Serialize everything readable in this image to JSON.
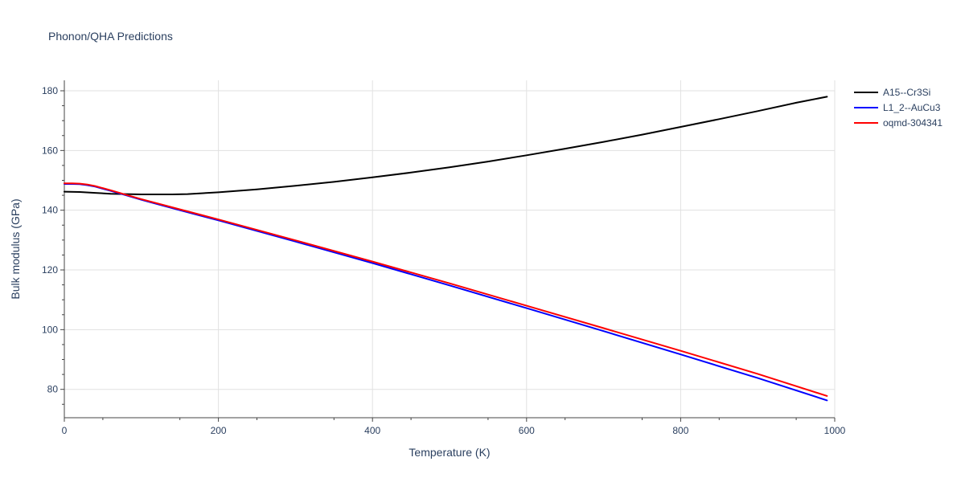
{
  "chart_data": {
    "type": "line",
    "title": "Phonon/QHA Predictions",
    "xlabel": "Temperature (K)",
    "ylabel": "Bulk modulus (GPa)",
    "xlim": [
      0,
      1000
    ],
    "ylim": [
      70.5,
      183.5
    ],
    "x_ticks": [
      0,
      200,
      400,
      600,
      800,
      1000
    ],
    "y_ticks": [
      80,
      100,
      120,
      140,
      160,
      180
    ],
    "grid": true,
    "legend_position": "right",
    "series": [
      {
        "name": "A15--Cr3Si",
        "color": "#000000",
        "x": [
          0,
          20,
          40,
          60,
          80,
          100,
          120,
          140,
          160,
          200,
          250,
          300,
          350,
          400,
          450,
          500,
          550,
          600,
          650,
          700,
          750,
          800,
          850,
          900,
          950,
          990
        ],
        "y": [
          146.2,
          146.1,
          145.8,
          145.5,
          145.4,
          145.3,
          145.3,
          145.3,
          145.4,
          146.0,
          147.0,
          148.2,
          149.5,
          151.0,
          152.6,
          154.4,
          156.3,
          158.4,
          160.6,
          162.9,
          165.3,
          167.9,
          170.5,
          173.2,
          176.0,
          178.0
        ]
      },
      {
        "name": "L1_2--AuCu3",
        "color": "#0000ff",
        "x": [
          0,
          10,
          20,
          30,
          40,
          60,
          80,
          100,
          150,
          200,
          300,
          400,
          500,
          600,
          700,
          800,
          900,
          990
        ],
        "y": [
          148.8,
          148.8,
          148.7,
          148.4,
          147.9,
          146.5,
          145.0,
          143.5,
          140.0,
          136.6,
          129.5,
          122.3,
          114.8,
          107.2,
          99.5,
          91.7,
          83.8,
          76.3
        ]
      },
      {
        "name": "oqmd-304341",
        "color": "#ff0000",
        "x": [
          0,
          10,
          20,
          30,
          40,
          60,
          80,
          100,
          150,
          200,
          300,
          400,
          500,
          600,
          700,
          800,
          900,
          990
        ],
        "y": [
          149.0,
          149.0,
          148.9,
          148.6,
          148.1,
          146.7,
          145.2,
          143.7,
          140.3,
          136.9,
          129.9,
          122.8,
          115.5,
          108.0,
          100.5,
          92.9,
          85.2,
          77.8
        ]
      }
    ]
  }
}
